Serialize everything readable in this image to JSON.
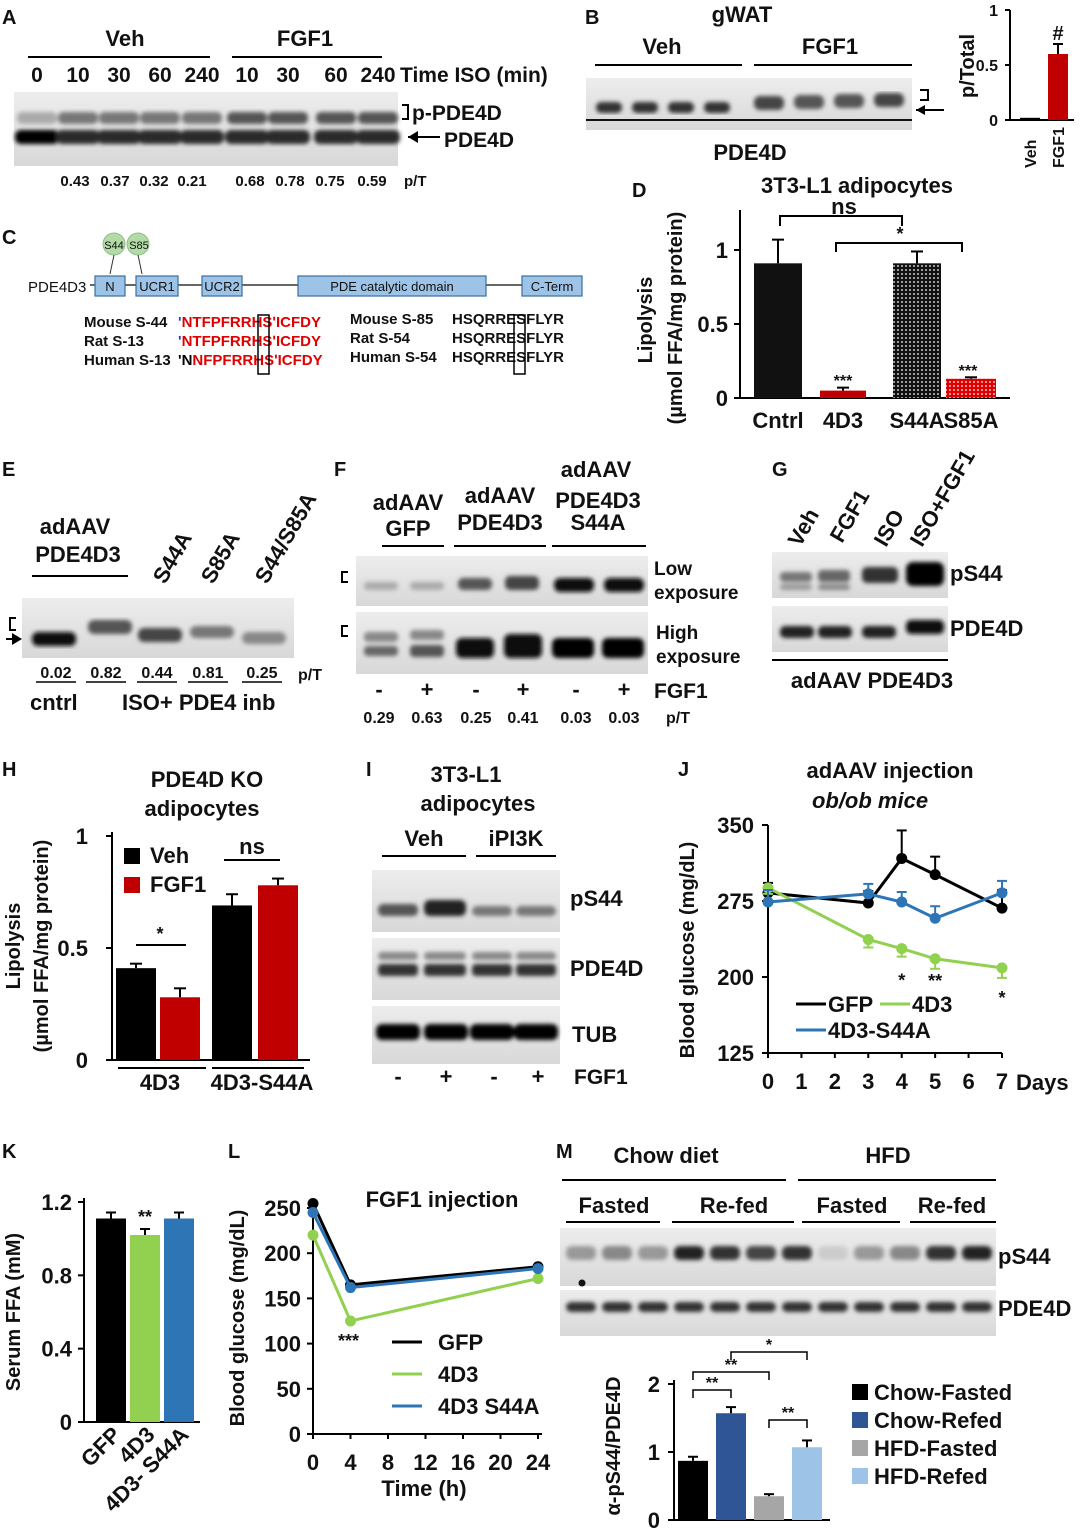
{
  "panels": {
    "A": "A",
    "B": "B",
    "C": "C",
    "D": "D",
    "E": "E",
    "F": "F",
    "G": "G",
    "H": "H",
    "I": "I",
    "J": "J",
    "K": "K",
    "L": "L",
    "M": "M"
  },
  "A": {
    "veh": "Veh",
    "fgf1": "FGF1",
    "time_label": "Time ISO (min)",
    "times": [
      "0",
      "10",
      "30",
      "60",
      "240",
      "10",
      "30",
      "60",
      "240"
    ],
    "ppde": "p-PDE4D",
    "pde": "PDE4D",
    "ratios": [
      "0.43",
      "0.37",
      "0.32",
      "0.21",
      "0.68",
      "0.78",
      "0.75",
      "0.59"
    ],
    "pt": "p/T"
  },
  "B": {
    "title": "gWAT",
    "veh": "Veh",
    "fgf1": "FGF1",
    "pde": "PDE4D",
    "ylabel": "p/Total",
    "yticks": [
      "1",
      "0.5",
      "0"
    ],
    "cats": [
      "Veh",
      "FGF1"
    ],
    "hash": "#"
  },
  "C": {
    "protein": "PDE4D3",
    "s44": "S44",
    "s85": "S85",
    "domains": [
      "N",
      "UCR1",
      "UCR2",
      "PDE catalytic domain",
      "C-Term"
    ],
    "left": [
      {
        "label": "Mouse S-44",
        "p": "'",
        "q": "NTFPFRRHSʹICFDY"
      },
      {
        "label": "Rat S-13",
        "p": "'",
        "q": "NTFPFRRHSʹICFDY"
      },
      {
        "label": "Human S-13",
        "p": "'N",
        "q": "NFPFRRHSʹICFDY"
      }
    ],
    "right": [
      {
        "label": "Mouse S-85",
        "q": "HSQRRESFLYR"
      },
      {
        "label": "Rat S-54",
        "q": "HSQRRESFLYR"
      },
      {
        "label": "Human S-54",
        "q": "HSQRRESFLYR"
      }
    ]
  },
  "D": {
    "title": "3T3-L1 adipocytes",
    "ylabel1": "Lipolysis",
    "ylabel2": "(µmol FFA/mg protein)",
    "ns": "ns",
    "star": "*",
    "sig": "***",
    "yticks": [
      "1",
      "0.5",
      "0"
    ]
  },
  "E": {
    "h1": "adAAV",
    "h2": "PDE4D3",
    "m1": "S44A",
    "m2": "S85A",
    "m3": "S44/S85A",
    "ratios": [
      "0.02",
      "0.82",
      "0.44",
      "0.81",
      "0.25"
    ],
    "pt": "p/T",
    "cntrl": "cntrl",
    "treat": "ISO+ PDE4 inb"
  },
  "F": {
    "g1a": "adAAV",
    "g1b": "GFP",
    "g2a": "adAAV",
    "g2b": "PDE4D3",
    "g3a": "adAAV",
    "g3b": "PDE4D3",
    "g3c": "S44A",
    "low1": "Low",
    "low2": "exposure",
    "high1": "High",
    "high2": "exposure",
    "signs": [
      "-",
      "+",
      "-",
      "+",
      "-",
      "+"
    ],
    "fgf1": "FGF1",
    "ratios": [
      "0.29",
      "0.63",
      "0.25",
      "0.41",
      "0.03",
      "0.03"
    ],
    "pt": "p/T"
  },
  "G": {
    "lanes": [
      "Veh",
      "FGF1",
      "ISO",
      "ISO+FGF1"
    ],
    "ps44": "pS44",
    "pde": "PDE4D",
    "footer": "adAAV PDE4D3"
  },
  "H": {
    "t1": "PDE4D KO",
    "t2": "adipocytes",
    "ylabel1": "Lipolysis",
    "ylabel2": "(µmol FFA/mg protein)",
    "yticks": [
      "1",
      "0.5",
      "0"
    ],
    "legend": [
      "Veh",
      "FGF1"
    ],
    "groups": [
      "4D3",
      "4D3-S44A"
    ],
    "ns": "ns",
    "star": "*"
  },
  "I": {
    "t1": "3T3-L1",
    "t2": "adipocytes",
    "veh": "Veh",
    "ipi3k": "iPI3K",
    "ps44": "pS44",
    "pde": "PDE4D",
    "tub": "TUB",
    "signs": [
      "-",
      "+",
      "-",
      "+"
    ],
    "fgf1": "FGF1"
  },
  "J": {
    "t1": "adAAV injection",
    "t2": "ob/ob mice",
    "ylabel": "Blood glucose (mg/dL)",
    "yticks": [
      "350",
      "275",
      "200",
      "125"
    ],
    "xticks": [
      "0",
      "1",
      "2",
      "3",
      "4",
      "5",
      "6",
      "7"
    ],
    "xunit": "Days",
    "legend": [
      "GFP",
      "4D3",
      "4D3-S44A"
    ],
    "sig1": "*",
    "sig2": "**"
  },
  "K": {
    "ylabel": "Serum FFA (mM)",
    "yticks": [
      "1.2",
      "0.8",
      "0.4",
      "0"
    ],
    "cats": [
      "GFP",
      "4D3",
      "4D3- S44A"
    ],
    "sig": "**"
  },
  "L": {
    "title": "FGF1 injection",
    "ylabel": "Blood glucose (mg/dL)",
    "xlabel": "Time (h)",
    "yticks": [
      "250",
      "200",
      "150",
      "100",
      "50",
      "0"
    ],
    "xticks": [
      "0",
      "4",
      "8",
      "12",
      "16",
      "20",
      "24"
    ],
    "legend": [
      "GFP",
      "4D3",
      "4D3 S44A"
    ],
    "sig": "***"
  },
  "M": {
    "chow": "Chow diet",
    "hfd": "HFD",
    "fasted": "Fasted",
    "refed": "Re-fed",
    "ps44": "pS44",
    "pde": "PDE4D",
    "ylabel": "α-pS44/PDE4D",
    "yticks": [
      "2",
      "1",
      "0"
    ],
    "legend": [
      "Chow-Fasted",
      "Chow-Refed",
      "HFD-Fasted",
      "HFD-Refed"
    ],
    "sig": "**",
    "star": "*"
  },
  "colors": {
    "black": "#000000",
    "red": "#c00000",
    "green": "#92d050",
    "blue": "#2e75b6",
    "darkblue": "#2f5597",
    "gray": "#a6a6a6",
    "lightblue": "#9dc3e6",
    "domain": "#9dc3e6",
    "seq": "#e00000"
  },
  "chart_data": [
    {
      "type": "bar",
      "panel": "B",
      "categories": [
        "Veh",
        "FGF1"
      ],
      "values": [
        0.02,
        0.6
      ],
      "ylim": [
        0,
        1
      ]
    },
    {
      "type": "bar",
      "panel": "D",
      "title": "3T3-L1 adipocytes",
      "categories": [
        "Cntrl",
        "4D3",
        "S44A",
        "S85A"
      ],
      "values": [
        0.91,
        0.05,
        0.91,
        0.13
      ],
      "ylim": [
        0,
        1.2
      ]
    },
    {
      "type": "bar",
      "panel": "H",
      "title": "PDE4D KO adipocytes",
      "categories": [
        "4D3",
        "4D3-S44A"
      ],
      "series": [
        {
          "name": "Veh",
          "values": [
            0.41,
            0.69
          ]
        },
        {
          "name": "FGF1",
          "values": [
            0.28,
            0.78
          ]
        }
      ],
      "ylim": [
        0,
        1
      ]
    },
    {
      "type": "line",
      "panel": "J",
      "x": [
        0,
        3,
        4,
        5,
        7
      ],
      "series": [
        {
          "name": "GFP",
          "values": [
            283,
            273,
            317,
            301,
            268
          ]
        },
        {
          "name": "4D3",
          "values": [
            288,
            237,
            228,
            218,
            209
          ]
        },
        {
          "name": "4D3-S44A",
          "values": [
            274,
            282,
            274,
            258,
            283
          ]
        }
      ],
      "ylim": [
        125,
        350
      ],
      "xlim": [
        0,
        7
      ]
    },
    {
      "type": "bar",
      "panel": "K",
      "categories": [
        "GFP",
        "4D3",
        "4D3- S44A"
      ],
      "values": [
        1.11,
        1.02,
        1.11
      ],
      "ylim": [
        0,
        1.2
      ]
    },
    {
      "type": "line",
      "panel": "L",
      "title": "FGF1 injection",
      "x": [
        0,
        4,
        24
      ],
      "series": [
        {
          "name": "GFP",
          "values": [
            255,
            165,
            185
          ]
        },
        {
          "name": "4D3",
          "values": [
            220,
            125,
            172
          ]
        },
        {
          "name": "4D3 S44A",
          "values": [
            245,
            162,
            183
          ]
        }
      ],
      "ylim": [
        0,
        250
      ],
      "xlim": [
        0,
        24
      ]
    },
    {
      "type": "bar",
      "panel": "M",
      "categories": [
        "Chow-Fasted",
        "Chow-Refed",
        "HFD-Fasted",
        "HFD-Refed"
      ],
      "values": [
        0.87,
        1.57,
        0.35,
        1.07
      ],
      "ylim": [
        0,
        2
      ]
    }
  ]
}
